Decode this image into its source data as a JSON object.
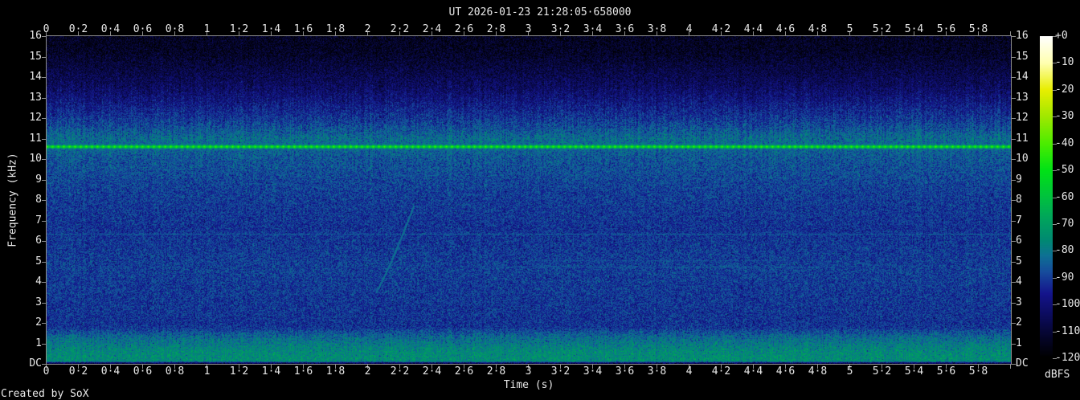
{
  "title": "UT 2026-01-23 21:28:05·658000",
  "footer": "Created by SoX",
  "axes": {
    "x_label": "Time (s)",
    "y_label": "Frequency (kHz)",
    "x_tick_labels": [
      "0",
      "0·2",
      "0·4",
      "0·6",
      "0·8",
      "1",
      "1·2",
      "1·4",
      "1·6",
      "1·8",
      "2",
      "2·2",
      "2·4",
      "2·6",
      "2·8",
      "3",
      "3·2",
      "3·4",
      "3·6",
      "3·8",
      "4",
      "4·2",
      "4·4",
      "4·6",
      "4·8",
      "5",
      "5·2",
      "5·4",
      "5·6",
      "5·8"
    ],
    "y_tick_labels": [
      "16",
      "15",
      "14",
      "13",
      "12",
      "11",
      "10",
      "9",
      "8",
      "7",
      "6",
      "5",
      "4",
      "3",
      "2",
      "1",
      "DC"
    ],
    "colorbar_labels": [
      "+0",
      "-10",
      "-20",
      "-30",
      "-40",
      "-50",
      "-60",
      "-70",
      "-80",
      "-90",
      "-100",
      "-110",
      "-120"
    ],
    "colorbar_unit": "dBFS"
  },
  "colors": {
    "background": "#000000",
    "axis_line": "#8c8c8c",
    "text": "#e8e8e8"
  },
  "chart_data": {
    "type": "heatmap",
    "title": "UT 2026-01-23 21:28:05·658000",
    "xlabel": "Time (s)",
    "ylabel": "Frequency (kHz)",
    "xlim_s": [
      0,
      6
    ],
    "ylim_khz": [
      0,
      16
    ],
    "x_tick_step_s": 0.2,
    "y_tick_step_khz": 1,
    "grid": false,
    "legend_position": "none",
    "colorbar": {
      "unit": "dBFS",
      "max_db": 0,
      "min_db": -120,
      "tick_step_db": 10,
      "position": "right"
    },
    "palette_stops_db_hex": [
      [
        -120,
        "#000000"
      ],
      [
        -112,
        "#05052c"
      ],
      [
        -104,
        "#0c0c5e"
      ],
      [
        -96,
        "#14148c"
      ],
      [
        -88,
        "#164c9c"
      ],
      [
        -82,
        "#0e7094"
      ],
      [
        -76,
        "#008a72"
      ],
      [
        -68,
        "#00a45c"
      ],
      [
        -60,
        "#00c23e"
      ],
      [
        -50,
        "#00e216"
      ],
      [
        -40,
        "#4cec00"
      ],
      [
        -30,
        "#a0e800"
      ],
      [
        -20,
        "#e8ee00"
      ],
      [
        -10,
        "#ffffb0"
      ],
      [
        0,
        "#ffffff"
      ]
    ],
    "noise_floor_profile_khz_db": [
      [
        16,
        -114
      ],
      [
        15.2,
        -113
      ],
      [
        13.6,
        -104
      ],
      [
        12.6,
        -96
      ],
      [
        11.6,
        -88
      ],
      [
        11.0,
        -82
      ],
      [
        10.45,
        -84
      ],
      [
        10.1,
        -86
      ],
      [
        8.3,
        -90
      ],
      [
        6.5,
        -92
      ],
      [
        4.6,
        -90
      ],
      [
        1.8,
        -92
      ],
      [
        1.3,
        -83
      ],
      [
        0.6,
        -76
      ],
      [
        0.12,
        -75
      ],
      [
        0.04,
        -106
      ]
    ],
    "noise_db_peak_to_peak": 16,
    "features": [
      {
        "kind": "pulsed_tone",
        "freq_khz": 10.62,
        "t_start_s": 0,
        "t_end_s": 6,
        "peak_db": -42,
        "trough_db": -60,
        "pulse_period_s": 0.035
      },
      {
        "kind": "chirp",
        "t_start_s": 2.05,
        "t_end_s": 2.28,
        "f_start_khz": 3.55,
        "f_end_khz": 7.65,
        "level_db": -78
      },
      {
        "kind": "hline",
        "freq_khz": 6.35,
        "t_start_s": 0,
        "t_end_s": 6,
        "level_db": -82
      },
      {
        "kind": "hline",
        "freq_khz": 5.05,
        "t_start_s": 3.0,
        "t_end_s": 4.6,
        "level_db": -85
      },
      {
        "kind": "hline",
        "freq_khz": 4.75,
        "t_start_s": 2.7,
        "t_end_s": 4.9,
        "level_db": -84
      },
      {
        "kind": "vline",
        "t_s": 5.45,
        "f_start_khz": 8.6,
        "f_end_khz": 10.3,
        "level_db": -86
      }
    ]
  }
}
